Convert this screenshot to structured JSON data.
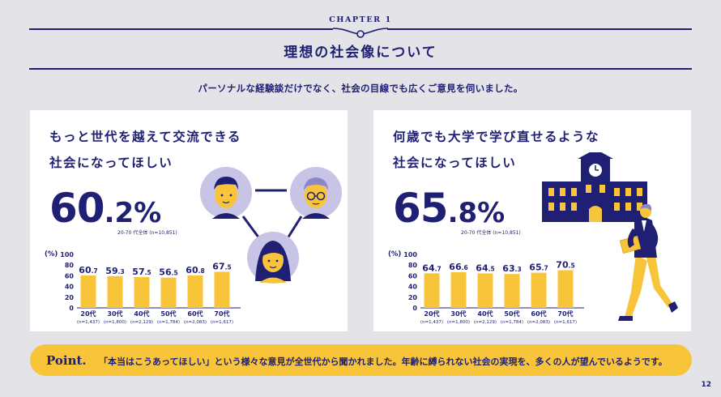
{
  "header": {
    "chapter": "CHAPTER 1",
    "title": "理想の社会像について",
    "subtitle": "パーソナルな経験談だけでなく、社会の目線でも広くご意見を伺いました。"
  },
  "colors": {
    "navy": "#1f1f73",
    "yellow": "#f8c43a",
    "background": "#e3e3e8",
    "card": "#ffffff",
    "avatar_circle": "#c8c4e6"
  },
  "cards": [
    {
      "heading_line1": "もっと世代を越えて交流できる",
      "heading_line2": "社会になってほしい",
      "big_int": "60",
      "big_dec": ".2",
      "big_pct": "%",
      "note": "20-70 代全体 (n=10,851)",
      "illustration": [
        "man-avatar-icon",
        "elder-with-glasses-avatar-icon",
        "woman-avatar-icon"
      ]
    },
    {
      "heading_line1": "何歳でも大学で学び直せるような",
      "heading_line2": "社会になってほしい",
      "big_int": "65",
      "big_dec": ".8",
      "big_pct": "%",
      "note": "20-70 代全体 (n=10,851)",
      "illustration": [
        "university-building-icon",
        "student-with-book-icon"
      ]
    }
  ],
  "chart_data": [
    {
      "type": "bar",
      "ylabel": "(%)",
      "ylim": [
        0,
        100
      ],
      "yticks": [
        0,
        20,
        40,
        60,
        80,
        100
      ],
      "categories": [
        "20代",
        "30代",
        "40代",
        "50代",
        "60代",
        "70代"
      ],
      "sample_sizes": [
        "(n=1,437)",
        "(n=1,800)",
        "(n=2,129)",
        "(n=1,784)",
        "(n=2,083)",
        "(n=1,617)"
      ],
      "values": [
        60.7,
        59.3,
        57.5,
        56.5,
        60.8,
        67.5
      ],
      "grid": false,
      "color": "#f8c43a"
    },
    {
      "type": "bar",
      "ylabel": "(%)",
      "ylim": [
        0,
        100
      ],
      "yticks": [
        0,
        20,
        40,
        60,
        80,
        100
      ],
      "categories": [
        "20代",
        "30代",
        "40代",
        "50代",
        "60代",
        "70代"
      ],
      "sample_sizes": [
        "(n=1,437)",
        "(n=1,800)",
        "(n=2,129)",
        "(n=1,784)",
        "(n=2,083)",
        "(n=1,617)"
      ],
      "values": [
        64.7,
        66.6,
        64.5,
        63.3,
        65.7,
        70.5
      ],
      "grid": false,
      "color": "#f8c43a"
    }
  ],
  "point": {
    "label": "Point.",
    "text": "「本当はこうあってほしい」という様々な意見が全世代から聞かれました。年齢に縛られない社会の実現を、多くの人が望んでいるようです。"
  },
  "page_number": "12"
}
